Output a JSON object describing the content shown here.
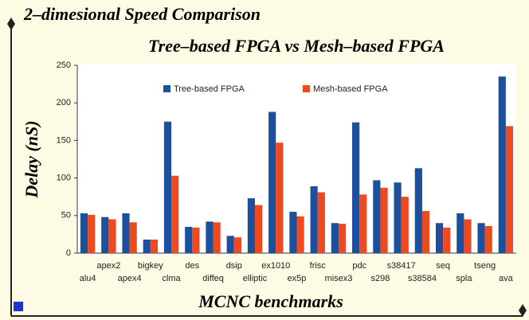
{
  "chart_data": {
    "type": "bar",
    "title": "2–dimesional Speed Comparison",
    "subtitle": "Tree–based FPGA vs Mesh–based FPGA",
    "y_label": "Delay (nS)",
    "x_label": "MCNC benchmarks",
    "categories": [
      "alu4",
      "apex2",
      "apex4",
      "bigkey",
      "clma",
      "des",
      "diffeq",
      "dsip",
      "elliptic",
      "ex1010",
      "ex5p",
      "frisc",
      "misex3",
      "pdc",
      "s298",
      "s38417",
      "s38584",
      "seq",
      "spla",
      "tseng",
      "ava"
    ],
    "series": [
      {
        "name": "Tree-based FPGA",
        "color": "#1c4f9c",
        "values": [
          53,
          48,
          53,
          18,
          175,
          35,
          42,
          23,
          73,
          188,
          55,
          89,
          40,
          174,
          97,
          94,
          113,
          40,
          53,
          40,
          235
        ]
      },
      {
        "name": "Mesh-based FPGA",
        "color": "#ee4a1f",
        "values": [
          51,
          45,
          41,
          18,
          103,
          34,
          41,
          21,
          64,
          147,
          49,
          81,
          39,
          78,
          87,
          75,
          56,
          34,
          45,
          36,
          169
        ]
      }
    ],
    "ylim": [
      0,
      250
    ],
    "yticks": [
      0,
      50,
      100,
      150,
      200,
      250
    ],
    "grid": false,
    "legend": "top"
  }
}
